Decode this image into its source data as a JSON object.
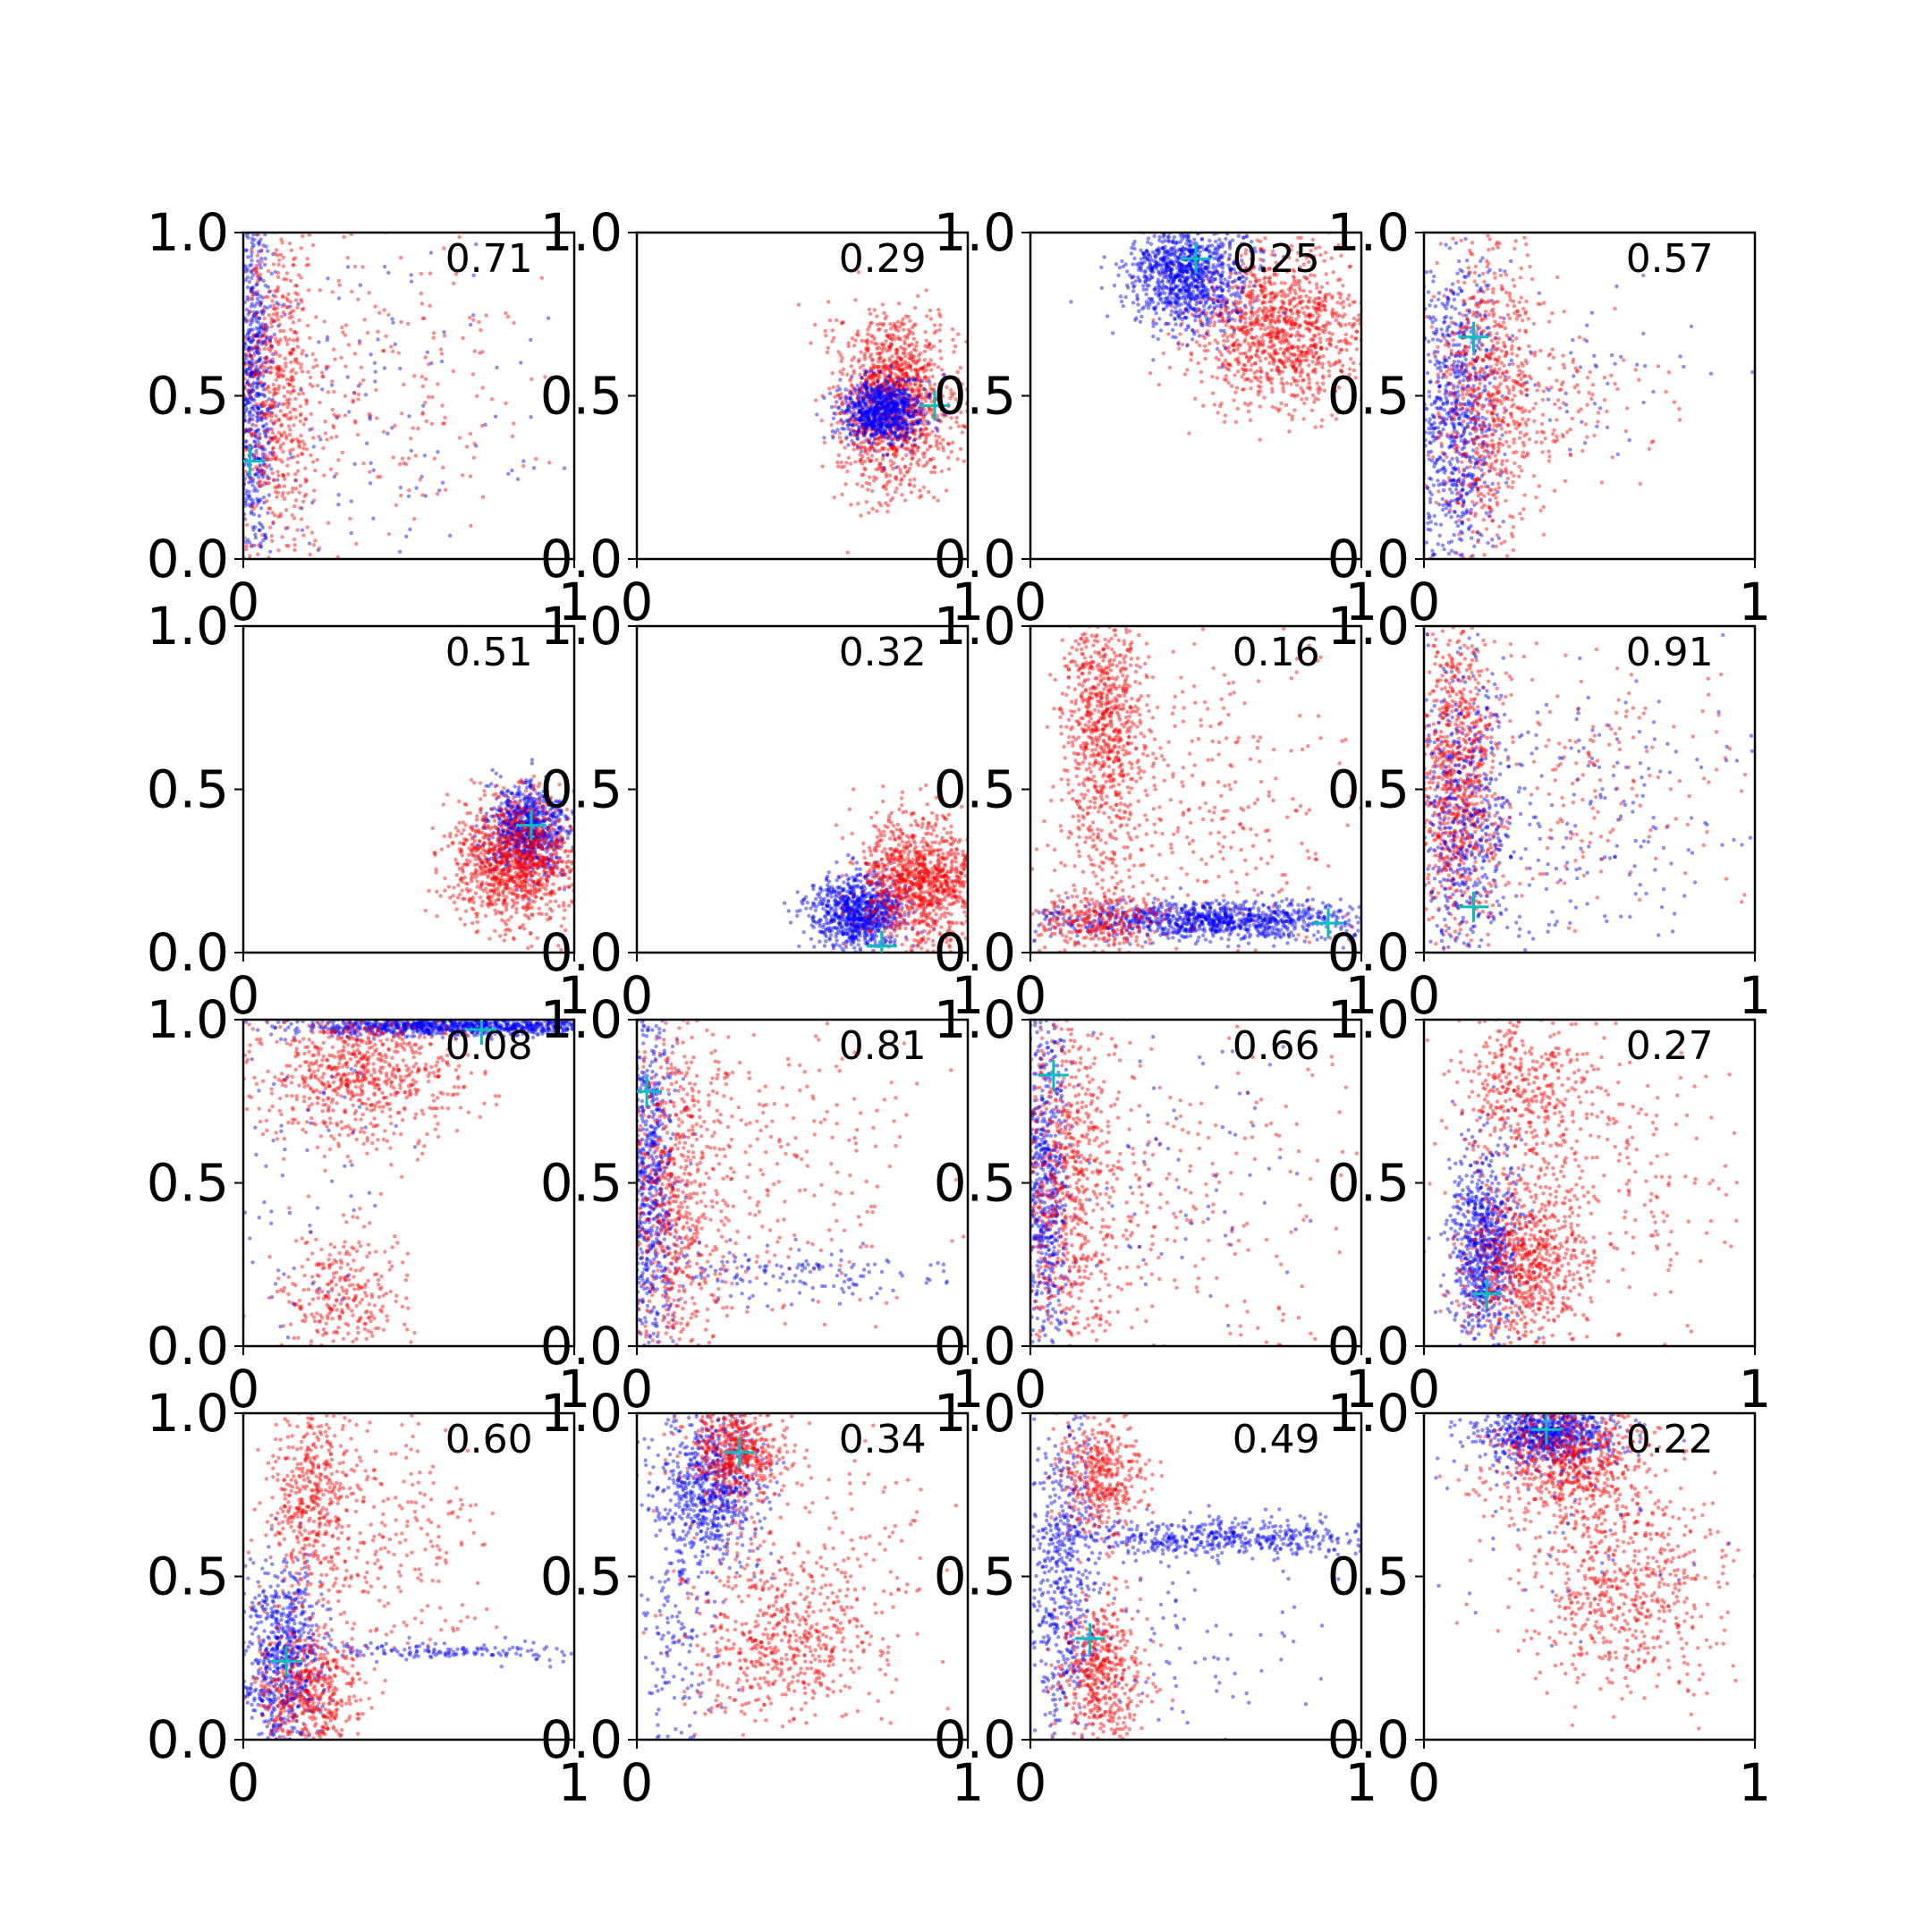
{
  "figure": {
    "background": "#ffffff",
    "rows": 4,
    "cols": 4
  },
  "colors": {
    "series_a": "#0000ff",
    "series_b": "#ff0000",
    "marker": "#00bfbf",
    "axes": "#000000"
  },
  "chart_data": [
    {
      "type": "scatter",
      "annotation": "0.71",
      "marker": [
        0.02,
        0.3
      ],
      "xlim": [
        0,
        1
      ],
      "ylim": [
        0,
        1
      ],
      "xticks": [
        "0",
        "1"
      ],
      "yticks": [
        "0.0",
        "0.5",
        "1.0"
      ],
      "clusters": [
        {
          "series": "blue",
          "cx": 0.03,
          "cy": 0.55,
          "sx": 0.03,
          "sy": 0.3,
          "n": 700
        },
        {
          "series": "blue",
          "cx": 0.35,
          "cy": 0.5,
          "sx": 0.3,
          "sy": 0.3,
          "n": 150
        },
        {
          "series": "red",
          "cx": 0.1,
          "cy": 0.5,
          "sx": 0.06,
          "sy": 0.3,
          "n": 600
        },
        {
          "series": "red",
          "cx": 0.4,
          "cy": 0.5,
          "sx": 0.25,
          "sy": 0.25,
          "n": 250
        }
      ]
    },
    {
      "type": "scatter",
      "annotation": "0.29",
      "marker": [
        0.9,
        0.47
      ],
      "xlim": [
        0,
        1
      ],
      "ylim": [
        0,
        1
      ],
      "xticks": [
        "0",
        "1"
      ],
      "yticks": [
        "0.0",
        "0.5",
        "1.0"
      ],
      "clusters": [
        {
          "series": "red",
          "cx": 0.78,
          "cy": 0.48,
          "sx": 0.09,
          "sy": 0.13,
          "n": 1300
        },
        {
          "series": "blue",
          "cx": 0.74,
          "cy": 0.45,
          "sx": 0.06,
          "sy": 0.05,
          "n": 800
        }
      ]
    },
    {
      "type": "scatter",
      "annotation": "0.25",
      "marker": [
        0.5,
        0.92
      ],
      "xlim": [
        0,
        1
      ],
      "ylim": [
        0,
        1
      ],
      "xticks": [
        "0",
        "1"
      ],
      "yticks": [
        "0.0",
        "0.5",
        "1.0"
      ],
      "clusters": [
        {
          "series": "red",
          "cx": 0.75,
          "cy": 0.7,
          "sx": 0.13,
          "sy": 0.12,
          "n": 1100
        },
        {
          "series": "blue",
          "cx": 0.47,
          "cy": 0.87,
          "sx": 0.09,
          "sy": 0.08,
          "n": 1000
        }
      ]
    },
    {
      "type": "scatter",
      "annotation": "0.57",
      "marker": [
        0.15,
        0.68
      ],
      "xlim": [
        0,
        1
      ],
      "ylim": [
        0,
        1
      ],
      "xticks": [
        "0",
        "1"
      ],
      "yticks": [
        "0.0",
        "0.5",
        "1.0"
      ],
      "clusters": [
        {
          "series": "blue",
          "cx": 0.1,
          "cy": 0.45,
          "sx": 0.06,
          "sy": 0.25,
          "n": 800
        },
        {
          "series": "red",
          "cx": 0.2,
          "cy": 0.5,
          "sx": 0.08,
          "sy": 0.25,
          "n": 700
        },
        {
          "series": "red",
          "cx": 0.4,
          "cy": 0.5,
          "sx": 0.18,
          "sy": 0.12,
          "n": 120
        },
        {
          "series": "blue",
          "cx": 0.5,
          "cy": 0.55,
          "sx": 0.2,
          "sy": 0.12,
          "n": 60
        }
      ]
    },
    {
      "type": "scatter",
      "annotation": "0.51",
      "marker": [
        0.87,
        0.39
      ],
      "xlim": [
        0,
        1
      ],
      "ylim": [
        0,
        1
      ],
      "xticks": [
        "0",
        "1"
      ],
      "yticks": [
        "0.0",
        "0.5",
        "1.0"
      ],
      "clusters": [
        {
          "series": "blue",
          "cx": 0.86,
          "cy": 0.38,
          "sx": 0.06,
          "sy": 0.07,
          "n": 800
        },
        {
          "series": "red",
          "cx": 0.82,
          "cy": 0.28,
          "sx": 0.09,
          "sy": 0.1,
          "n": 1100
        }
      ]
    },
    {
      "type": "scatter",
      "annotation": "0.32",
      "marker": [
        0.74,
        0.02
      ],
      "xlim": [
        0,
        1
      ],
      "ylim": [
        0,
        1
      ],
      "xticks": [
        "0",
        "1"
      ],
      "yticks": [
        "0.0",
        "0.5",
        "1.0"
      ],
      "clusters": [
        {
          "series": "blue",
          "cx": 0.67,
          "cy": 0.12,
          "sx": 0.07,
          "sy": 0.06,
          "n": 900
        },
        {
          "series": "red",
          "cx": 0.86,
          "cy": 0.22,
          "sx": 0.09,
          "sy": 0.1,
          "n": 1100
        }
      ]
    },
    {
      "type": "scatter",
      "annotation": "0.16",
      "marker": [
        0.9,
        0.09
      ],
      "xlim": [
        0,
        1
      ],
      "ylim": [
        0,
        1
      ],
      "xticks": [
        "0",
        "1"
      ],
      "yticks": [
        "0.0",
        "0.5",
        "1.0"
      ],
      "clusters": [
        {
          "series": "red",
          "cx": 0.22,
          "cy": 0.7,
          "sx": 0.06,
          "sy": 0.22,
          "n": 800
        },
        {
          "series": "red",
          "cx": 0.5,
          "cy": 0.4,
          "sx": 0.25,
          "sy": 0.25,
          "n": 400
        },
        {
          "series": "blue",
          "cx": 0.55,
          "cy": 0.1,
          "sx": 0.25,
          "sy": 0.03,
          "n": 1000
        },
        {
          "series": "red",
          "cx": 0.2,
          "cy": 0.1,
          "sx": 0.1,
          "sy": 0.05,
          "n": 300
        }
      ]
    },
    {
      "type": "scatter",
      "annotation": "0.91",
      "marker": [
        0.15,
        0.14
      ],
      "xlim": [
        0,
        1
      ],
      "ylim": [
        0,
        1
      ],
      "xticks": [
        "0",
        "1"
      ],
      "yticks": [
        "0.0",
        "0.5",
        "1.0"
      ],
      "clusters": [
        {
          "series": "red",
          "cx": 0.1,
          "cy": 0.55,
          "sx": 0.06,
          "sy": 0.25,
          "n": 900
        },
        {
          "series": "blue",
          "cx": 0.12,
          "cy": 0.4,
          "sx": 0.08,
          "sy": 0.25,
          "n": 500
        },
        {
          "series": "blue",
          "cx": 0.5,
          "cy": 0.4,
          "sx": 0.25,
          "sy": 0.2,
          "n": 200
        },
        {
          "series": "red",
          "cx": 0.45,
          "cy": 0.5,
          "sx": 0.25,
          "sy": 0.2,
          "n": 200
        }
      ]
    },
    {
      "type": "scatter",
      "annotation": "0.08",
      "marker": [
        0.72,
        0.97
      ],
      "xlim": [
        0,
        1
      ],
      "ylim": [
        0,
        1
      ],
      "xticks": [
        "0",
        "1"
      ],
      "yticks": [
        "0.0",
        "0.5",
        "1.0"
      ],
      "clusters": [
        {
          "series": "blue",
          "cx": 0.65,
          "cy": 0.98,
          "sx": 0.25,
          "sy": 0.015,
          "n": 900
        },
        {
          "series": "red",
          "cx": 0.35,
          "cy": 0.85,
          "sx": 0.15,
          "sy": 0.12,
          "n": 800
        },
        {
          "series": "red",
          "cx": 0.3,
          "cy": 0.15,
          "sx": 0.1,
          "sy": 0.1,
          "n": 300
        },
        {
          "series": "blue",
          "cx": 0.2,
          "cy": 0.6,
          "sx": 0.15,
          "sy": 0.3,
          "n": 80
        }
      ]
    },
    {
      "type": "scatter",
      "annotation": "0.81",
      "marker": [
        0.03,
        0.78
      ],
      "xlim": [
        0,
        1
      ],
      "ylim": [
        0,
        1
      ],
      "xticks": [
        "0",
        "1"
      ],
      "yticks": [
        "0.0",
        "0.5",
        "1.0"
      ],
      "clusters": [
        {
          "series": "blue",
          "cx": 0.04,
          "cy": 0.45,
          "sx": 0.04,
          "sy": 0.28,
          "n": 700
        },
        {
          "series": "red",
          "cx": 0.12,
          "cy": 0.45,
          "sx": 0.08,
          "sy": 0.28,
          "n": 700
        },
        {
          "series": "red",
          "cx": 0.45,
          "cy": 0.55,
          "sx": 0.25,
          "sy": 0.25,
          "n": 250
        },
        {
          "series": "blue",
          "cx": 0.45,
          "cy": 0.22,
          "sx": 0.25,
          "sy": 0.04,
          "n": 150
        }
      ]
    },
    {
      "type": "scatter",
      "annotation": "0.66",
      "marker": [
        0.07,
        0.83
      ],
      "xlim": [
        0,
        1
      ],
      "ylim": [
        0,
        1
      ],
      "xticks": [
        "0",
        "1"
      ],
      "yticks": [
        "0.0",
        "0.5",
        "1.0"
      ],
      "clusters": [
        {
          "series": "blue",
          "cx": 0.04,
          "cy": 0.5,
          "sx": 0.04,
          "sy": 0.28,
          "n": 700
        },
        {
          "series": "red",
          "cx": 0.12,
          "cy": 0.5,
          "sx": 0.08,
          "sy": 0.28,
          "n": 700
        },
        {
          "series": "red",
          "cx": 0.45,
          "cy": 0.45,
          "sx": 0.25,
          "sy": 0.25,
          "n": 250
        },
        {
          "series": "blue",
          "cx": 0.45,
          "cy": 0.55,
          "sx": 0.25,
          "sy": 0.25,
          "n": 80
        }
      ]
    },
    {
      "type": "scatter",
      "annotation": "0.27",
      "marker": [
        0.19,
        0.16
      ],
      "xlim": [
        0,
        1
      ],
      "ylim": [
        0,
        1
      ],
      "xticks": [
        "0",
        "1"
      ],
      "yticks": [
        "0.0",
        "0.5",
        "1.0"
      ],
      "clusters": [
        {
          "series": "blue",
          "cx": 0.18,
          "cy": 0.3,
          "sx": 0.05,
          "sy": 0.15,
          "n": 800
        },
        {
          "series": "red",
          "cx": 0.3,
          "cy": 0.25,
          "sx": 0.1,
          "sy": 0.12,
          "n": 700
        },
        {
          "series": "red",
          "cx": 0.3,
          "cy": 0.8,
          "sx": 0.1,
          "sy": 0.12,
          "n": 400
        },
        {
          "series": "red",
          "cx": 0.55,
          "cy": 0.5,
          "sx": 0.2,
          "sy": 0.2,
          "n": 250
        }
      ]
    },
    {
      "type": "scatter",
      "annotation": "0.60",
      "marker": [
        0.13,
        0.24
      ],
      "xlim": [
        0,
        1
      ],
      "ylim": [
        0,
        1
      ],
      "xticks": [
        "0",
        "1"
      ],
      "yticks": [
        "0.0",
        "0.5",
        "1.0"
      ],
      "clusters": [
        {
          "series": "blue",
          "cx": 0.12,
          "cy": 0.25,
          "sx": 0.06,
          "sy": 0.15,
          "n": 700
        },
        {
          "series": "red",
          "cx": 0.2,
          "cy": 0.15,
          "sx": 0.08,
          "sy": 0.1,
          "n": 500
        },
        {
          "series": "red",
          "cx": 0.2,
          "cy": 0.75,
          "sx": 0.06,
          "sy": 0.15,
          "n": 400
        },
        {
          "series": "red",
          "cx": 0.4,
          "cy": 0.6,
          "sx": 0.18,
          "sy": 0.2,
          "n": 300
        },
        {
          "series": "blue",
          "cx": 0.6,
          "cy": 0.27,
          "sx": 0.25,
          "sy": 0.015,
          "n": 150
        }
      ]
    },
    {
      "type": "scatter",
      "annotation": "0.34",
      "marker": [
        0.31,
        0.88
      ],
      "xlim": [
        0,
        1
      ],
      "ylim": [
        0,
        1
      ],
      "xticks": [
        "0",
        "1"
      ],
      "yticks": [
        "0.0",
        "0.5",
        "1.0"
      ],
      "clusters": [
        {
          "series": "blue",
          "cx": 0.22,
          "cy": 0.78,
          "sx": 0.08,
          "sy": 0.12,
          "n": 700
        },
        {
          "series": "red",
          "cx": 0.3,
          "cy": 0.88,
          "sx": 0.07,
          "sy": 0.07,
          "n": 500
        },
        {
          "series": "red",
          "cx": 0.45,
          "cy": 0.3,
          "sx": 0.15,
          "sy": 0.12,
          "n": 500
        },
        {
          "series": "red",
          "cx": 0.5,
          "cy": 0.55,
          "sx": 0.2,
          "sy": 0.2,
          "n": 200
        },
        {
          "series": "blue",
          "cx": 0.12,
          "cy": 0.3,
          "sx": 0.06,
          "sy": 0.2,
          "n": 150
        }
      ]
    },
    {
      "type": "scatter",
      "annotation": "0.49",
      "marker": [
        0.18,
        0.31
      ],
      "xlim": [
        0,
        1
      ],
      "ylim": [
        0,
        1
      ],
      "xticks": [
        "0",
        "1"
      ],
      "yticks": [
        "0.0",
        "0.5",
        "1.0"
      ],
      "clusters": [
        {
          "series": "blue",
          "cx": 0.1,
          "cy": 0.5,
          "sx": 0.05,
          "sy": 0.25,
          "n": 500
        },
        {
          "series": "blue",
          "cx": 0.55,
          "cy": 0.62,
          "sx": 0.25,
          "sy": 0.03,
          "n": 500
        },
        {
          "series": "red",
          "cx": 0.22,
          "cy": 0.2,
          "sx": 0.06,
          "sy": 0.12,
          "n": 500
        },
        {
          "series": "red",
          "cx": 0.22,
          "cy": 0.8,
          "sx": 0.06,
          "sy": 0.1,
          "n": 400
        },
        {
          "series": "blue",
          "cx": 0.4,
          "cy": 0.3,
          "sx": 0.25,
          "sy": 0.15,
          "n": 100
        }
      ]
    },
    {
      "type": "scatter",
      "annotation": "0.22",
      "marker": [
        0.37,
        0.95
      ],
      "xlim": [
        0,
        1
      ],
      "ylim": [
        0,
        1
      ],
      "xticks": [
        "0",
        "1"
      ],
      "yticks": [
        "0.0",
        "0.5",
        "1.0"
      ],
      "clusters": [
        {
          "series": "blue",
          "cx": 0.37,
          "cy": 0.94,
          "sx": 0.1,
          "sy": 0.05,
          "n": 800
        },
        {
          "series": "red",
          "cx": 0.45,
          "cy": 0.85,
          "sx": 0.12,
          "sy": 0.1,
          "n": 700
        },
        {
          "series": "red",
          "cx": 0.6,
          "cy": 0.45,
          "sx": 0.15,
          "sy": 0.15,
          "n": 600
        },
        {
          "series": "blue",
          "cx": 0.4,
          "cy": 0.7,
          "sx": 0.2,
          "sy": 0.2,
          "n": 60
        }
      ]
    }
  ]
}
